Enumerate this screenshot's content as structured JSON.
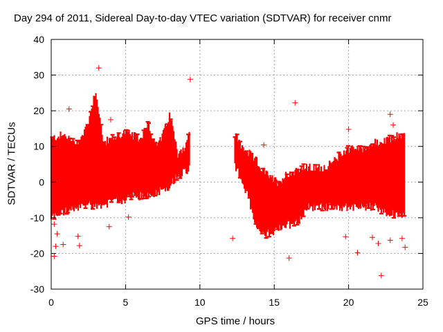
{
  "chart_data": {
    "type": "scatter",
    "title": "Day 294 of 2011, Sidereal Day-to-day VTEC variation (SDTVAR) for receiver cnmr",
    "xlabel": "GPS time / hours",
    "ylabel": "SDTVAR / TECUs",
    "xlim": [
      0,
      25
    ],
    "ylim": [
      -30,
      40
    ],
    "xticks": [
      "0",
      "5",
      "10",
      "15",
      "20",
      "25"
    ],
    "yticks": [
      "-30",
      "-20",
      "-10",
      "0",
      "10",
      "20",
      "30",
      "40"
    ],
    "grid": true,
    "marker": "+",
    "color": "#ff0000",
    "envelope": [
      {
        "x": 0.0,
        "lo": -10,
        "hi": 12
      },
      {
        "x": 0.5,
        "lo": -9,
        "hi": 13
      },
      {
        "x": 1.0,
        "lo": -8,
        "hi": 13
      },
      {
        "x": 1.5,
        "lo": -8,
        "hi": 11
      },
      {
        "x": 2.0,
        "lo": -7,
        "hi": 12
      },
      {
        "x": 2.5,
        "lo": -6,
        "hi": 17
      },
      {
        "x": 3.0,
        "lo": -7,
        "hi": 26
      },
      {
        "x": 3.5,
        "lo": -6,
        "hi": 11
      },
      {
        "x": 4.0,
        "lo": -6,
        "hi": 12
      },
      {
        "x": 4.5,
        "lo": -5,
        "hi": 13
      },
      {
        "x": 5.0,
        "lo": -5,
        "hi": 14
      },
      {
        "x": 5.5,
        "lo": -4,
        "hi": 13
      },
      {
        "x": 6.0,
        "lo": -4,
        "hi": 12
      },
      {
        "x": 6.5,
        "lo": -4,
        "hi": 17
      },
      {
        "x": 7.0,
        "lo": -3,
        "hi": 10
      },
      {
        "x": 7.5,
        "lo": -2,
        "hi": 13
      },
      {
        "x": 8.0,
        "lo": -1,
        "hi": 19
      },
      {
        "x": 8.5,
        "lo": 2,
        "hi": 8
      },
      {
        "x": 9.0,
        "lo": 3,
        "hi": 10
      },
      {
        "x": 9.35,
        "lo": 4,
        "hi": 14
      },
      {
        "x": 12.3,
        "lo": 5,
        "hi": 14
      },
      {
        "x": 12.8,
        "lo": 1,
        "hi": 10
      },
      {
        "x": 13.3,
        "lo": -5,
        "hi": 8
      },
      {
        "x": 13.8,
        "lo": -13,
        "hi": 6
      },
      {
        "x": 14.3,
        "lo": -15,
        "hi": 3
      },
      {
        "x": 14.8,
        "lo": -14,
        "hi": 1
      },
      {
        "x": 15.3,
        "lo": -13,
        "hi": 0
      },
      {
        "x": 15.8,
        "lo": -12,
        "hi": 2
      },
      {
        "x": 16.3,
        "lo": -12,
        "hi": 3
      },
      {
        "x": 16.8,
        "lo": -10,
        "hi": 4
      },
      {
        "x": 17.3,
        "lo": -7,
        "hi": 4
      },
      {
        "x": 17.8,
        "lo": -7,
        "hi": 4
      },
      {
        "x": 18.3,
        "lo": -7,
        "hi": 4
      },
      {
        "x": 18.8,
        "lo": -7,
        "hi": 5
      },
      {
        "x": 19.3,
        "lo": -7,
        "hi": 7
      },
      {
        "x": 19.8,
        "lo": -7,
        "hi": 9
      },
      {
        "x": 20.3,
        "lo": -7,
        "hi": 10
      },
      {
        "x": 20.8,
        "lo": -7,
        "hi": 9
      },
      {
        "x": 21.3,
        "lo": -7,
        "hi": 10
      },
      {
        "x": 21.8,
        "lo": -7,
        "hi": 11
      },
      {
        "x": 22.3,
        "lo": -8,
        "hi": 11
      },
      {
        "x": 22.8,
        "lo": -9,
        "hi": 12
      },
      {
        "x": 23.3,
        "lo": -9,
        "hi": 13
      },
      {
        "x": 23.8,
        "lo": -9,
        "hi": 13
      }
    ],
    "outliers": [
      {
        "x": 3.2,
        "y": 32
      },
      {
        "x": 9.35,
        "y": 28.8
      },
      {
        "x": 1.2,
        "y": 20.5
      },
      {
        "x": 16.4,
        "y": 22.2
      },
      {
        "x": 22.8,
        "y": 19
      },
      {
        "x": 20.0,
        "y": 14.8
      },
      {
        "x": 14.3,
        "y": 10.4
      },
      {
        "x": 4.0,
        "y": 17.5
      },
      {
        "x": 12.2,
        "y": -15.8
      },
      {
        "x": 16.0,
        "y": -21.3
      },
      {
        "x": 20.6,
        "y": -19.8
      },
      {
        "x": 22.2,
        "y": -26.2
      },
      {
        "x": 0.2,
        "y": -20.8
      },
      {
        "x": 0.3,
        "y": -18
      },
      {
        "x": 0.8,
        "y": -17.5
      },
      {
        "x": 0.4,
        "y": -14.5
      },
      {
        "x": 1.8,
        "y": -15.2
      },
      {
        "x": 1.9,
        "y": -17.8
      },
      {
        "x": 3.9,
        "y": -12.5
      },
      {
        "x": 5.2,
        "y": -9.8
      },
      {
        "x": 19.8,
        "y": -15.3
      },
      {
        "x": 21.6,
        "y": -15.5
      },
      {
        "x": 22.0,
        "y": -17.2
      },
      {
        "x": 22.8,
        "y": -16.3
      },
      {
        "x": 23.8,
        "y": -18.3
      },
      {
        "x": 23.6,
        "y": -15.8
      },
      {
        "x": 0.2,
        "y": -11.8
      },
      {
        "x": 2.5,
        "y": 15
      },
      {
        "x": 23.0,
        "y": 16
      }
    ]
  }
}
